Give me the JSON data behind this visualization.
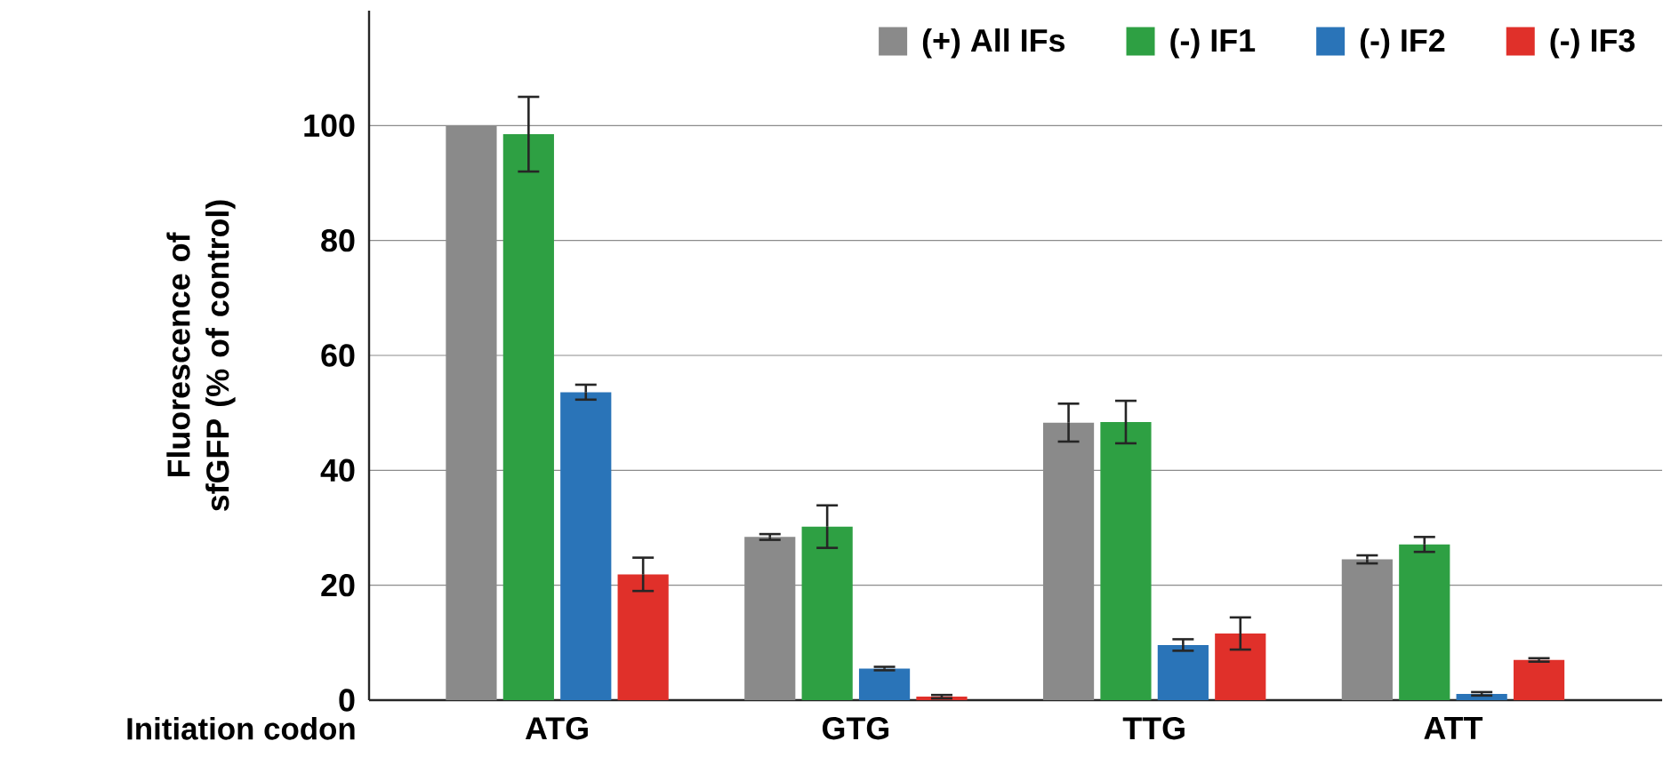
{
  "chart_data": {
    "type": "bar",
    "xlabel": "Initiation codon",
    "ylabel": "Fluorescence of sfGFP (% of control)",
    "categories": [
      "ATG",
      "GTG",
      "TTG",
      "ATT"
    ],
    "series": [
      {
        "name": "(+) All IFs",
        "color": "#8a8a8a",
        "values": [
          100,
          28.4,
          48.3,
          24.5
        ],
        "errors": [
          null,
          0.5,
          3.3,
          0.7
        ]
      },
      {
        "name": "(-) IF1",
        "color": "#2ea043",
        "values": [
          98.5,
          30.2,
          48.4,
          27.1
        ],
        "errors": [
          6.5,
          3.7,
          3.7,
          1.3
        ]
      },
      {
        "name": "(-) IF2",
        "color": "#2a74b8",
        "values": [
          53.6,
          5.5,
          9.6,
          1.1
        ],
        "errors": [
          1.3,
          0.3,
          1.0,
          0.3
        ]
      },
      {
        "name": "(-) IF3",
        "color": "#e0302a",
        "values": [
          21.9,
          0.6,
          11.6,
          7.0
        ],
        "errors": [
          2.9,
          0.3,
          2.8,
          0.3
        ]
      }
    ],
    "ylim": [
      0,
      120
    ],
    "yticks": [
      0,
      20,
      40,
      60,
      80,
      100
    ],
    "grid": "y",
    "legend": "top right"
  }
}
